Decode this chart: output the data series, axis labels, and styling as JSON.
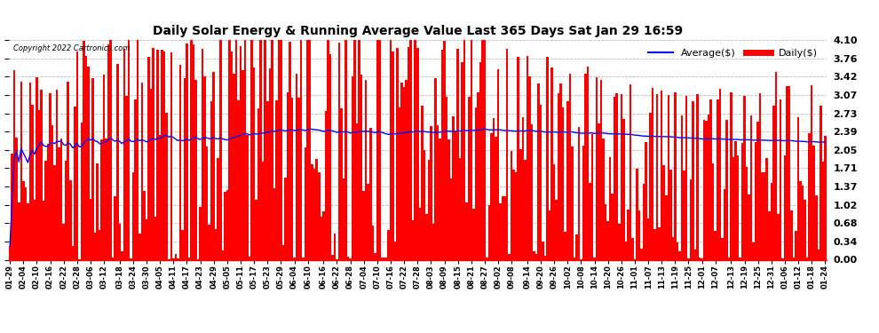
{
  "title": "Daily Solar Energy & Running Average Value Last 365 Days Sat Jan 29 16:59",
  "copyright": "Copyright 2022 Cartronics.com",
  "legend_average": "Average($)",
  "legend_daily": "Daily($)",
  "bar_color": "#FF0000",
  "average_line_color": "#0000FF",
  "background_color": "#FFFFFF",
  "grid_color": "#BBBBBB",
  "ylim": [
    0.0,
    4.1
  ],
  "yticks": [
    0.0,
    0.34,
    0.68,
    1.02,
    1.37,
    1.71,
    2.05,
    2.39,
    2.73,
    3.07,
    3.42,
    3.76,
    4.1
  ],
  "xlabel_dates": [
    "01-29",
    "02-04",
    "02-10",
    "02-16",
    "02-22",
    "02-28",
    "03-06",
    "03-12",
    "03-18",
    "03-24",
    "03-30",
    "04-05",
    "04-11",
    "04-17",
    "04-23",
    "04-29",
    "05-05",
    "05-11",
    "05-17",
    "05-23",
    "05-29",
    "06-04",
    "06-10",
    "06-16",
    "06-22",
    "06-28",
    "07-04",
    "07-10",
    "07-16",
    "07-22",
    "07-28",
    "08-03",
    "08-09",
    "08-15",
    "08-21",
    "08-27",
    "09-02",
    "09-08",
    "09-14",
    "09-20",
    "09-26",
    "10-02",
    "10-08",
    "10-14",
    "10-20",
    "10-26",
    "11-01",
    "11-07",
    "11-13",
    "11-19",
    "11-25",
    "12-01",
    "12-07",
    "12-13",
    "12-19",
    "12-25",
    "12-31",
    "01-06",
    "01-12",
    "01-18",
    "01-24"
  ],
  "n_bars": 365,
  "seed": 7
}
